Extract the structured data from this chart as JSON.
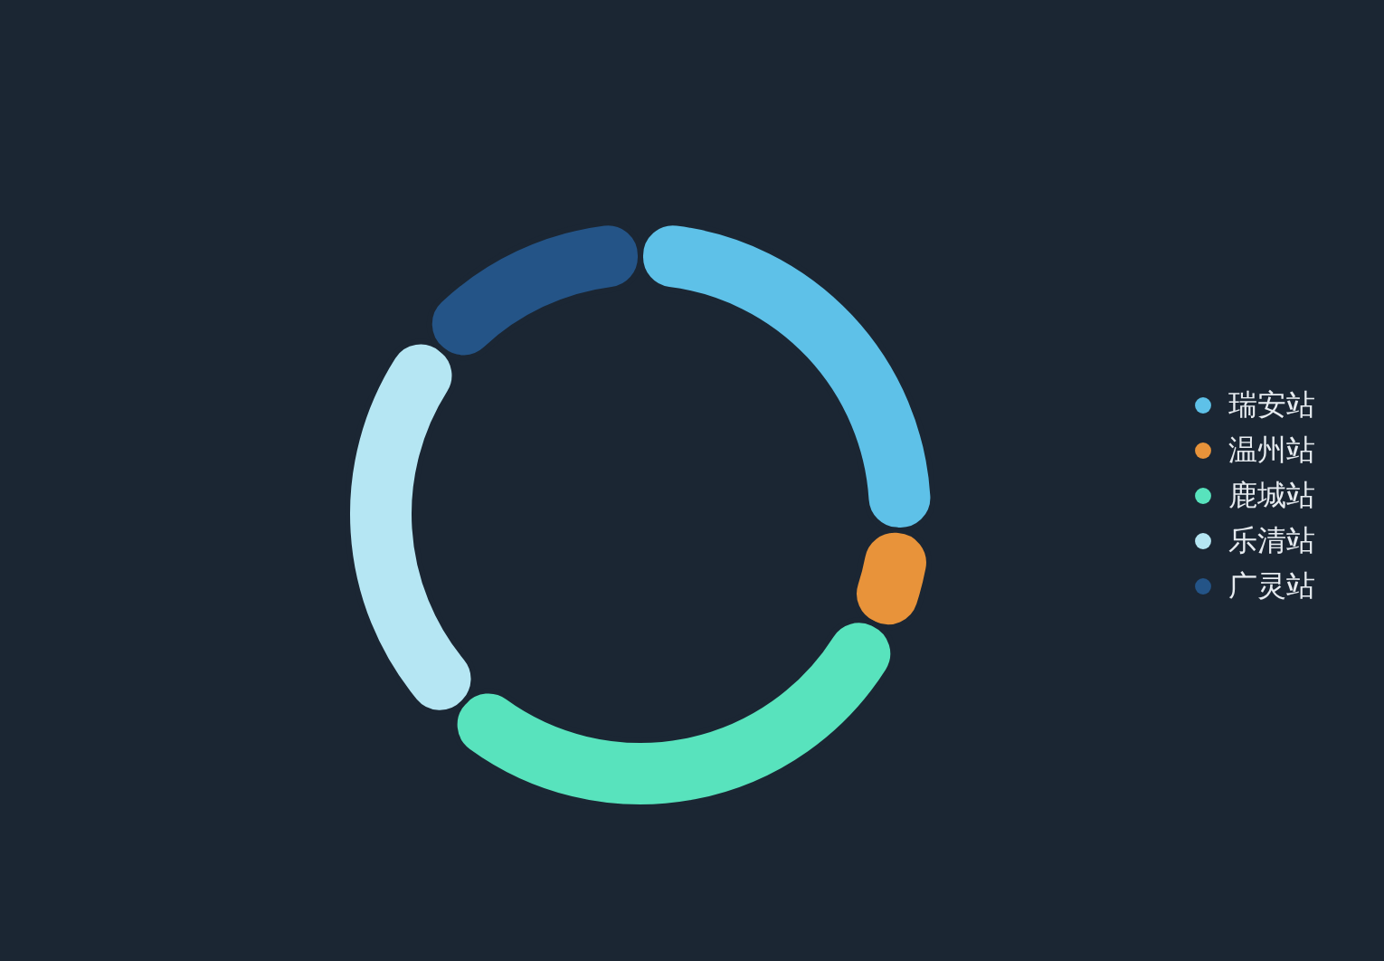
{
  "chart_data": {
    "type": "donut",
    "categories": [
      "瑞安站",
      "温州站",
      "鹿城站",
      "乐清站",
      "广灵站"
    ],
    "values": [
      26,
      6,
      30,
      24,
      14
    ],
    "colors": [
      "#5ec1e8",
      "#e8933a",
      "#58e3bd",
      "#b5e6f3",
      "#245487"
    ],
    "legend": "right"
  }
}
